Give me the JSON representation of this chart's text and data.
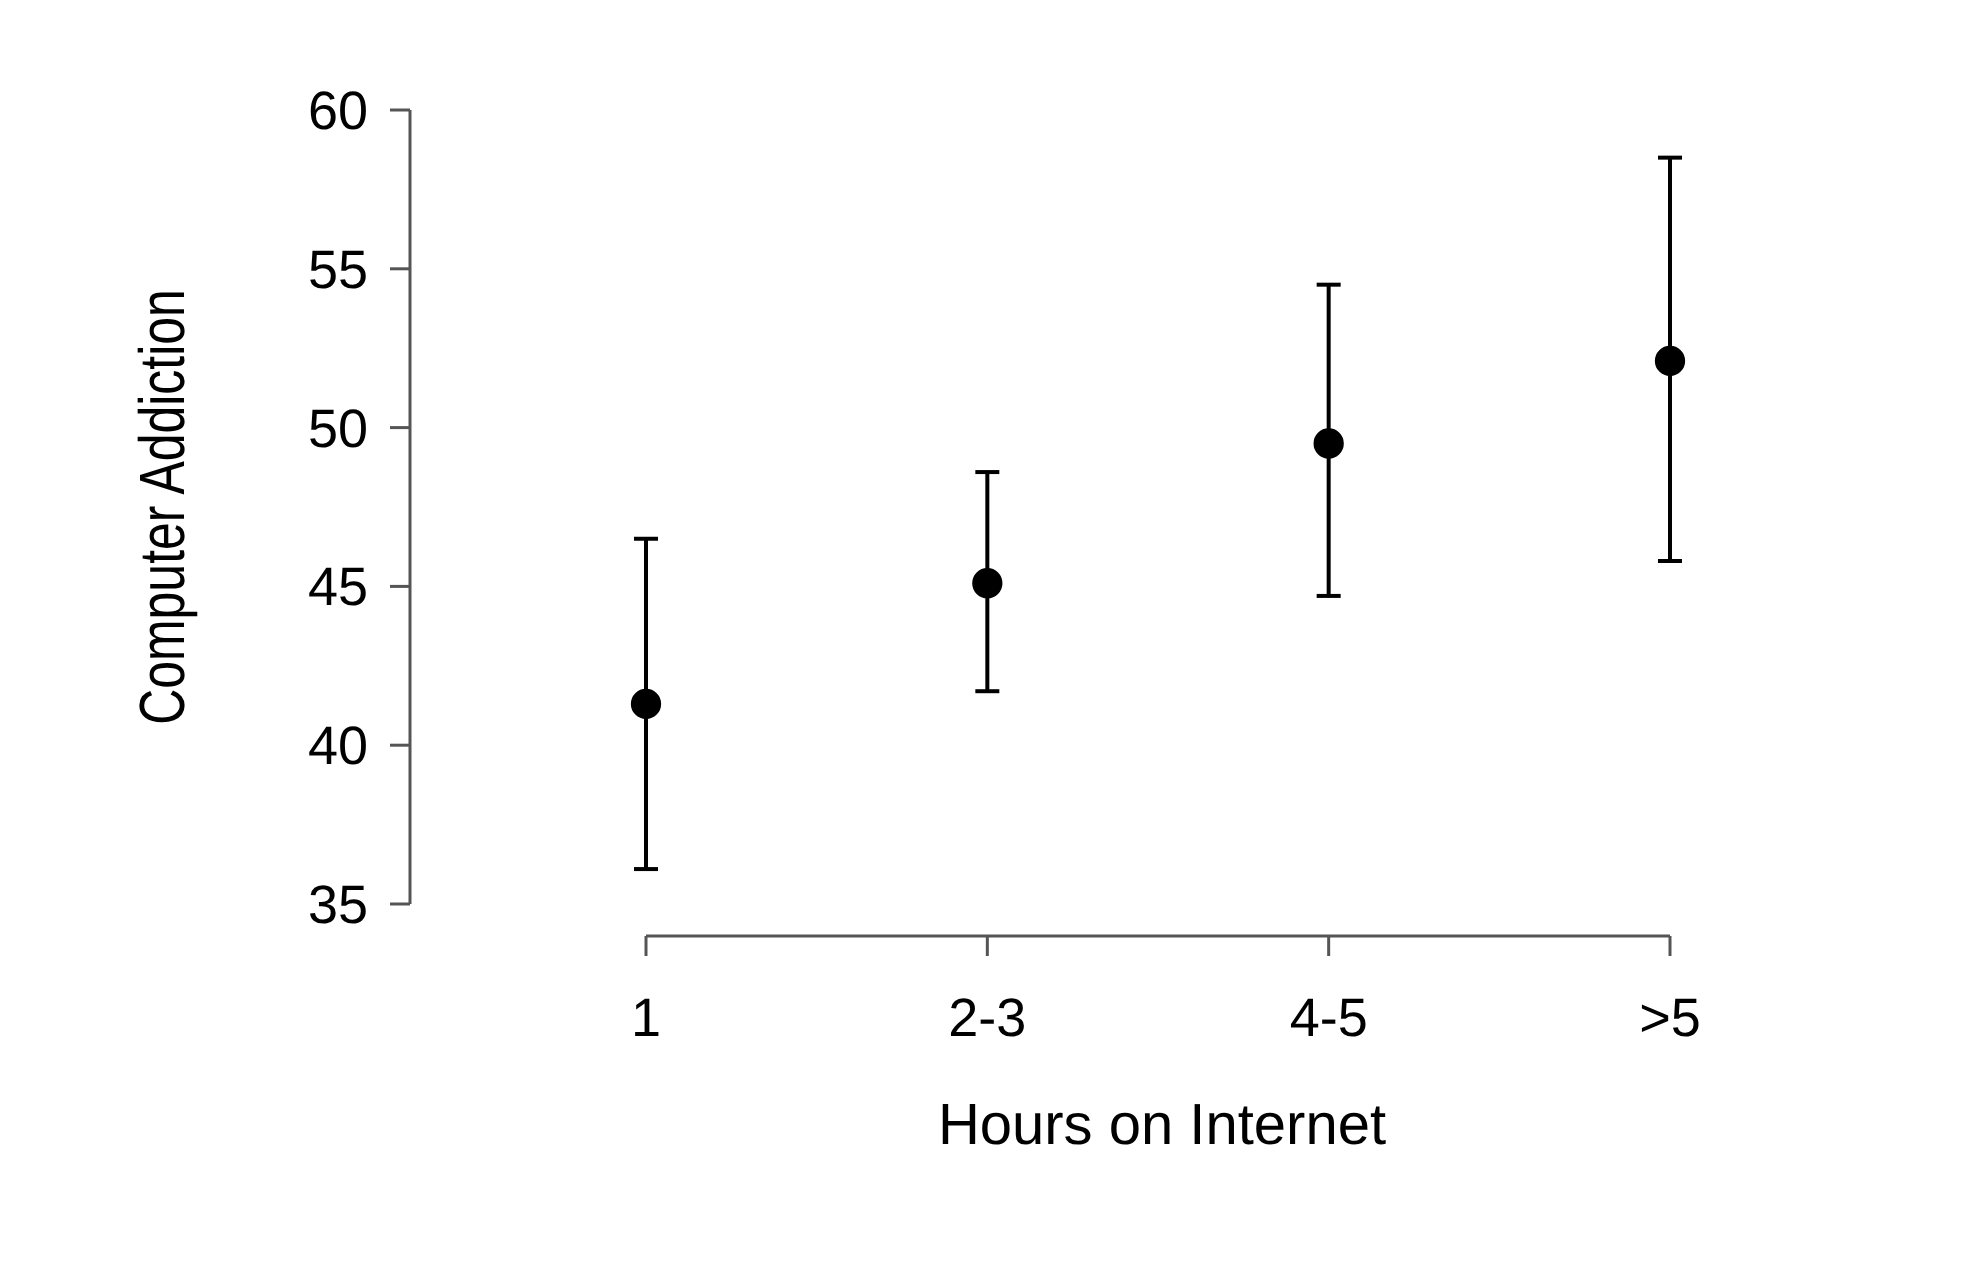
{
  "chart_data": {
    "type": "scatter",
    "xlabel": "Hours on Internet",
    "ylabel": "Computer Addiction",
    "categories": [
      "1",
      "2-3",
      "4-5",
      ">5"
    ],
    "values": [
      41.3,
      45.1,
      49.5,
      52.1
    ],
    "errors": [
      [
        36.1,
        46.5
      ],
      [
        41.7,
        48.6
      ],
      [
        44.7,
        54.5
      ],
      [
        45.8,
        58.5
      ]
    ],
    "color": "#000000",
    "marker": "circle",
    "ylim": [
      35,
      60
    ],
    "yticks": [
      35,
      40,
      45,
      50,
      55,
      60
    ],
    "grid": false
  }
}
